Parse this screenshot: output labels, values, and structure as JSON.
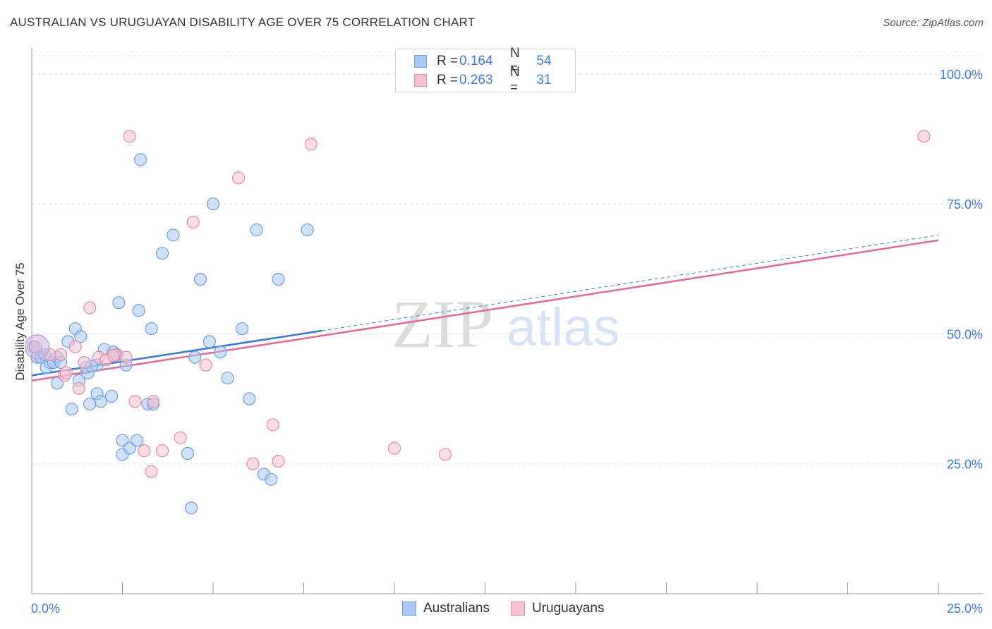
{
  "title": "AUSTRALIAN VS URUGUAYAN DISABILITY AGE OVER 75 CORRELATION CHART",
  "source": "Source: ZipAtlas.com",
  "legend": {
    "rows": [
      {
        "r_label": "R =",
        "r_value": "0.164",
        "n_label": "N =",
        "n_value": "54",
        "color": "#a9c8f2",
        "border": "#6d9ee0"
      },
      {
        "r_label": "R =",
        "r_value": "0.263",
        "n_label": "N =",
        "n_value": "31",
        "color": "#f6c1d1",
        "border": "#e88aa8"
      }
    ]
  },
  "bottom_legend": {
    "australians": "Australians",
    "uruguayans": "Uruguayans"
  },
  "watermark": {
    "zip": "ZIP",
    "atlas": "atlas"
  },
  "chart_data": {
    "type": "scatter",
    "title": "AUSTRALIAN VS URUGUAYAN DISABILITY AGE OVER 75 CORRELATION CHART",
    "xlabel": "",
    "ylabel": "Disability Age Over 75",
    "xlim": [
      0,
      25
    ],
    "ylim": [
      0,
      105
    ],
    "x_ticks": [
      "0.0%",
      "25.0%"
    ],
    "y_ticks": [
      {
        "value": 25,
        "label": "25.0%"
      },
      {
        "value": 50,
        "label": "50.0%"
      },
      {
        "value": 75,
        "label": "75.0%"
      },
      {
        "value": 100,
        "label": "100.0%"
      }
    ],
    "grid": true,
    "legend_position": "top-center",
    "series": [
      {
        "name": "Australians",
        "color": "#a9c8f2",
        "stroke": "#6d9ee0",
        "trend_color": "#3a78d4",
        "trend": {
          "x0": 0,
          "y0": 42.0,
          "x1": 8.0,
          "y1": 50.6,
          "dash_to_x": 25,
          "dash_to_y": 69.0
        },
        "points": [
          [
            0.15,
            45.5
          ],
          [
            0.25,
            45.5
          ],
          [
            0.4,
            43.5
          ],
          [
            0.5,
            44.5
          ],
          [
            0.6,
            44.5
          ],
          [
            0.7,
            45.5
          ],
          [
            0.7,
            40.5
          ],
          [
            1.0,
            48.5
          ],
          [
            1.2,
            51.0
          ],
          [
            1.3,
            41.0
          ],
          [
            1.35,
            49.5
          ],
          [
            1.1,
            35.5
          ],
          [
            1.5,
            43.5
          ],
          [
            1.55,
            42.5
          ],
          [
            1.8,
            44.0
          ],
          [
            1.8,
            38.5
          ],
          [
            1.9,
            37.0
          ],
          [
            2.0,
            47.0
          ],
          [
            2.2,
            38.0
          ],
          [
            2.25,
            46.5
          ],
          [
            2.35,
            46.0
          ],
          [
            1.6,
            36.5
          ],
          [
            2.4,
            56.0
          ],
          [
            2.6,
            44.0
          ],
          [
            2.5,
            29.5
          ],
          [
            2.5,
            26.8
          ],
          [
            2.7,
            28.0
          ],
          [
            2.9,
            29.5
          ],
          [
            2.95,
            54.5
          ],
          [
            3.0,
            83.5
          ],
          [
            3.3,
            51.0
          ],
          [
            3.2,
            36.5
          ],
          [
            3.35,
            36.5
          ],
          [
            3.6,
            65.5
          ],
          [
            3.9,
            69.0
          ],
          [
            4.3,
            27.0
          ],
          [
            4.4,
            16.5
          ],
          [
            4.5,
            45.5
          ],
          [
            4.65,
            60.5
          ],
          [
            4.9,
            48.5
          ],
          [
            5.0,
            75.0
          ],
          [
            5.2,
            46.5
          ],
          [
            5.4,
            41.5
          ],
          [
            5.8,
            51.0
          ],
          [
            6.0,
            37.5
          ],
          [
            6.2,
            70.0
          ],
          [
            6.4,
            23.0
          ],
          [
            6.6,
            22.0
          ],
          [
            6.8,
            60.5
          ],
          [
            7.6,
            70.0
          ],
          [
            0.05,
            47.5
          ],
          [
            0.8,
            44.5
          ],
          [
            0.35,
            46.0
          ],
          [
            1.65,
            43.8
          ]
        ]
      },
      {
        "name": "Uruguayans",
        "color": "#f6c1d1",
        "stroke": "#e88aa8",
        "trend_color": "#e0699a",
        "trend": {
          "x0": 0,
          "y0": 41.0,
          "x1": 25,
          "y1": 68.0
        },
        "points": [
          [
            0.1,
            47.5
          ],
          [
            0.5,
            46.0
          ],
          [
            0.8,
            46.0
          ],
          [
            0.9,
            42.0
          ],
          [
            1.2,
            47.5
          ],
          [
            1.3,
            39.5
          ],
          [
            1.6,
            55.0
          ],
          [
            1.85,
            45.5
          ],
          [
            2.05,
            45.0
          ],
          [
            2.3,
            46.0
          ],
          [
            2.6,
            45.5
          ],
          [
            2.7,
            88.0
          ],
          [
            2.85,
            37.0
          ],
          [
            3.1,
            27.5
          ],
          [
            3.3,
            23.5
          ],
          [
            3.35,
            37.0
          ],
          [
            3.6,
            27.5
          ],
          [
            4.1,
            30.0
          ],
          [
            4.45,
            71.5
          ],
          [
            4.8,
            44.0
          ],
          [
            5.7,
            80.0
          ],
          [
            6.1,
            25.0
          ],
          [
            6.65,
            32.5
          ],
          [
            6.8,
            25.5
          ],
          [
            7.7,
            86.5
          ],
          [
            10.0,
            28.0
          ],
          [
            11.4,
            26.8
          ],
          [
            24.6,
            88.0
          ],
          [
            2.25,
            45.8
          ],
          [
            0.95,
            42.5
          ],
          [
            1.45,
            44.5
          ]
        ]
      }
    ]
  }
}
